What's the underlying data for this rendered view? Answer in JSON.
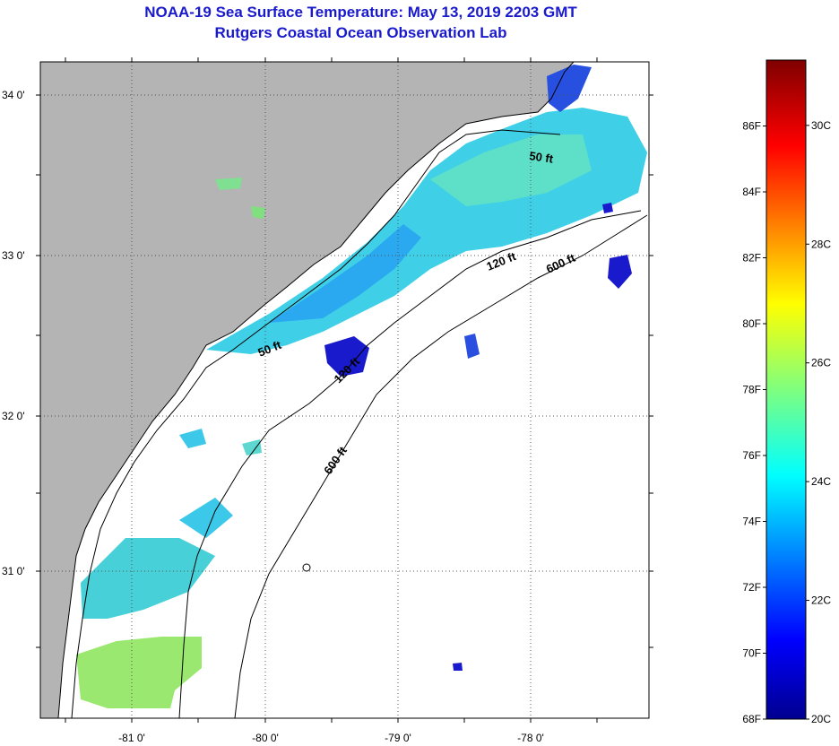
{
  "title": "NOAA-19 Sea Surface Temperature:  May 13, 2019 2203 GMT",
  "subtitle": "Rutgers Coastal Ocean Observation Lab",
  "map": {
    "lat_labels": [
      "34 0'",
      "33 0'",
      "32 0'",
      "31 0'"
    ],
    "lon_labels": [
      "-81 0'",
      "-80 0'",
      "-79 0'",
      "-78 0'"
    ],
    "contour_labels": [
      "50 ft",
      "50 ft",
      "120 ft",
      "120 ft",
      "600 ft",
      "600 ft"
    ],
    "colors": {
      "land": "#b4b4b4",
      "ocean_missing": "#ffffff",
      "coast": "#000000"
    }
  },
  "colorbar": {
    "fahrenheit_labels": [
      "86F",
      "84F",
      "82F",
      "80F",
      "78F",
      "76F",
      "74F",
      "72F",
      "70F",
      "68F"
    ],
    "celsius_labels": [
      "30C",
      "28C",
      "26C",
      "24C",
      "22C",
      "20C"
    ],
    "range_f": [
      68,
      88
    ],
    "range_c": [
      20,
      31.1
    ],
    "colormap": "jet"
  }
}
